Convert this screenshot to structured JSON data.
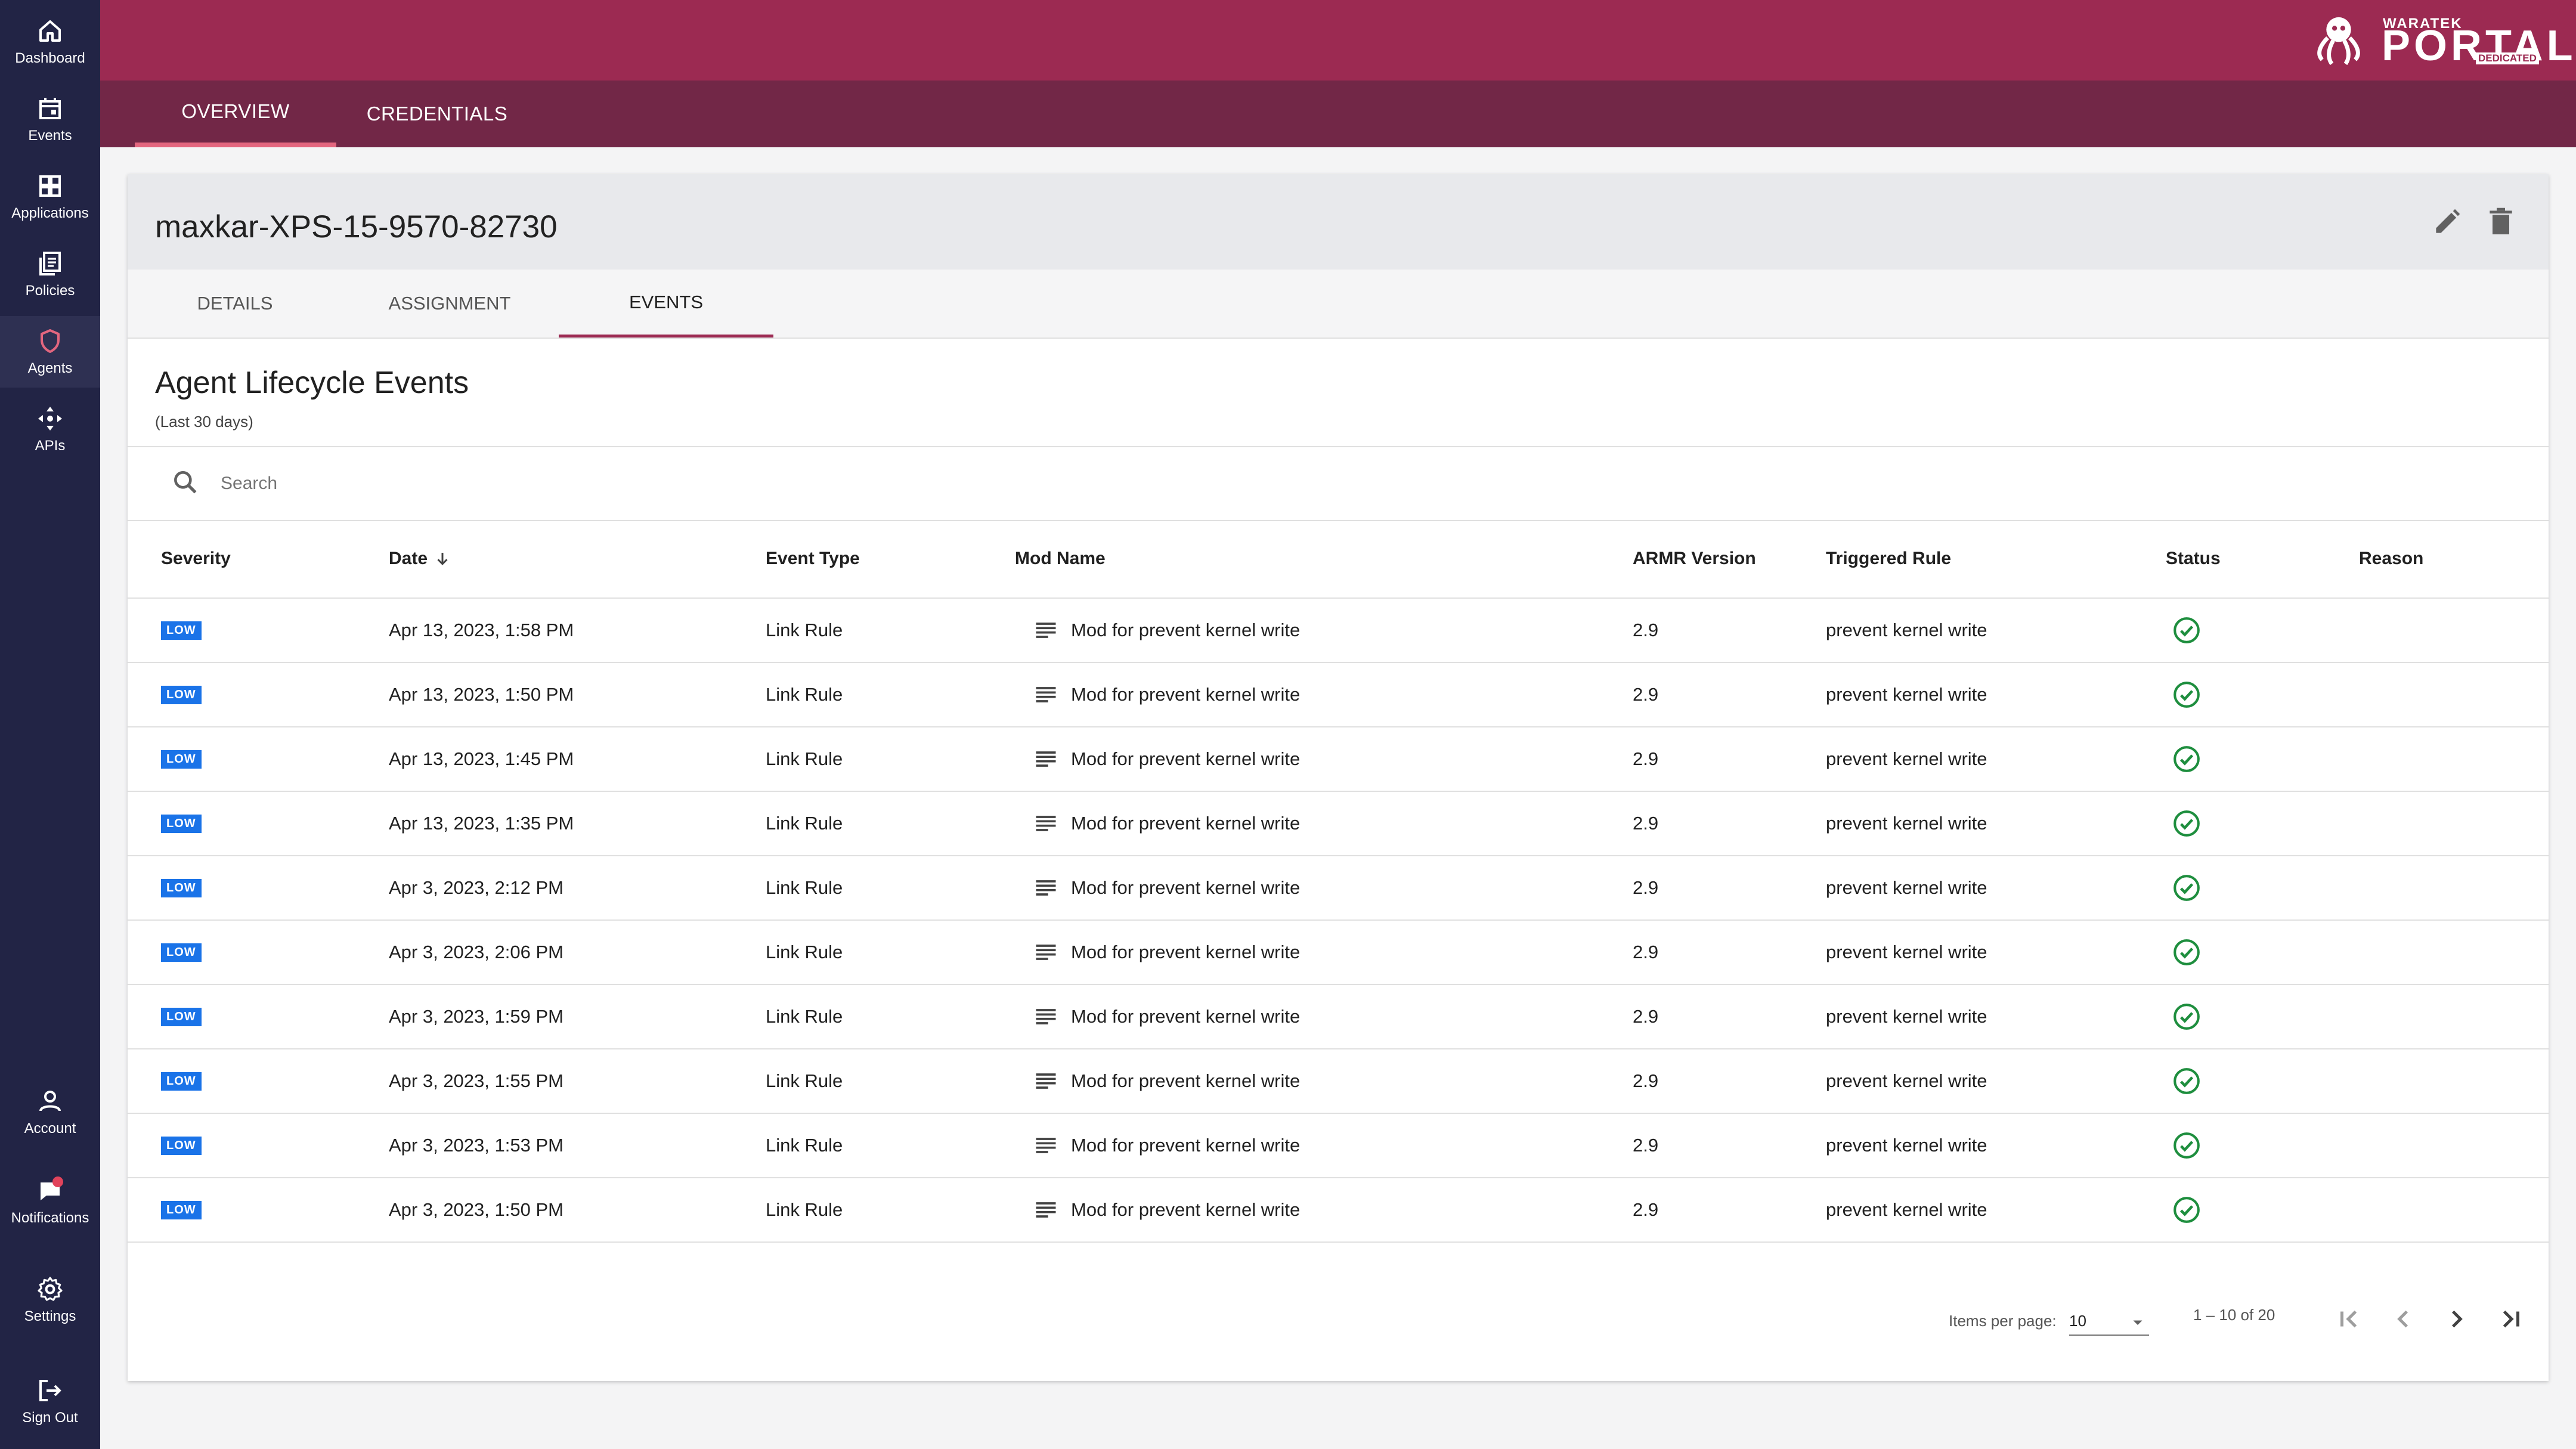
{
  "nav": {
    "dashboard": "Dashboard",
    "events": "Events",
    "applications": "Applications",
    "policies": "Policies",
    "agents": "Agents",
    "apis": "APIs",
    "account": "Account",
    "notifications": "Notifications",
    "settings": "Settings",
    "signout": "Sign Out"
  },
  "brand": {
    "small": "WARATEK",
    "big": "PORTAL",
    "tag": "DEDICATED"
  },
  "top_tabs": {
    "overview": "OVERVIEW",
    "credentials": "CREDENTIALS"
  },
  "agent": {
    "name": "maxkar-XPS-15-9570-82730"
  },
  "sub_tabs": {
    "details": "DETAILS",
    "assignment": "ASSIGNMENT",
    "events": "EVENTS"
  },
  "section": {
    "title": "Agent Lifecycle Events",
    "subtitle": "(Last 30 days)"
  },
  "search": {
    "placeholder": "Search",
    "value": ""
  },
  "columns": {
    "severity": "Severity",
    "date": "Date",
    "event_type": "Event Type",
    "mod_name": "Mod Name",
    "armr_version": "ARMR Version",
    "triggered_rule": "Triggered Rule",
    "status": "Status",
    "reason": "Reason"
  },
  "rows": [
    {
      "severity": "LOW",
      "date": "Apr 13, 2023, 1:58 PM",
      "event_type": "Link Rule",
      "mod_name": "Mod for prevent kernel write",
      "armr_version": "2.9",
      "triggered_rule": "prevent kernel write",
      "reason": ""
    },
    {
      "severity": "LOW",
      "date": "Apr 13, 2023, 1:50 PM",
      "event_type": "Link Rule",
      "mod_name": "Mod for prevent kernel write",
      "armr_version": "2.9",
      "triggered_rule": "prevent kernel write",
      "reason": ""
    },
    {
      "severity": "LOW",
      "date": "Apr 13, 2023, 1:45 PM",
      "event_type": "Link Rule",
      "mod_name": "Mod for prevent kernel write",
      "armr_version": "2.9",
      "triggered_rule": "prevent kernel write",
      "reason": ""
    },
    {
      "severity": "LOW",
      "date": "Apr 13, 2023, 1:35 PM",
      "event_type": "Link Rule",
      "mod_name": "Mod for prevent kernel write",
      "armr_version": "2.9",
      "triggered_rule": "prevent kernel write",
      "reason": ""
    },
    {
      "severity": "LOW",
      "date": "Apr 3, 2023, 2:12 PM",
      "event_type": "Link Rule",
      "mod_name": "Mod for prevent kernel write",
      "armr_version": "2.9",
      "triggered_rule": "prevent kernel write",
      "reason": ""
    },
    {
      "severity": "LOW",
      "date": "Apr 3, 2023, 2:06 PM",
      "event_type": "Link Rule",
      "mod_name": "Mod for prevent kernel write",
      "armr_version": "2.9",
      "triggered_rule": "prevent kernel write",
      "reason": ""
    },
    {
      "severity": "LOW",
      "date": "Apr 3, 2023, 1:59 PM",
      "event_type": "Link Rule",
      "mod_name": "Mod for prevent kernel write",
      "armr_version": "2.9",
      "triggered_rule": "prevent kernel write",
      "reason": ""
    },
    {
      "severity": "LOW",
      "date": "Apr 3, 2023, 1:55 PM",
      "event_type": "Link Rule",
      "mod_name": "Mod for prevent kernel write",
      "armr_version": "2.9",
      "triggered_rule": "prevent kernel write",
      "reason": ""
    },
    {
      "severity": "LOW",
      "date": "Apr 3, 2023, 1:53 PM",
      "event_type": "Link Rule",
      "mod_name": "Mod for prevent kernel write",
      "armr_version": "2.9",
      "triggered_rule": "prevent kernel write",
      "reason": ""
    },
    {
      "severity": "LOW",
      "date": "Apr 3, 2023, 1:50 PM",
      "event_type": "Link Rule",
      "mod_name": "Mod for prevent kernel write",
      "armr_version": "2.9",
      "triggered_rule": "prevent kernel write",
      "reason": ""
    }
  ],
  "paginator": {
    "items_label": "Items per page:",
    "page_size": "10",
    "range": "1 – 10 of 20"
  },
  "icons": {
    "status": "check-circle-icon",
    "mod": "notes-icon",
    "edit": "pencil-icon",
    "delete": "trash-icon"
  },
  "colors": {
    "brand": "#9c2a52",
    "brand_dark": "#722747",
    "sidebar": "#222445",
    "badge": "#1a73e8",
    "success": "#1e8e3e"
  }
}
